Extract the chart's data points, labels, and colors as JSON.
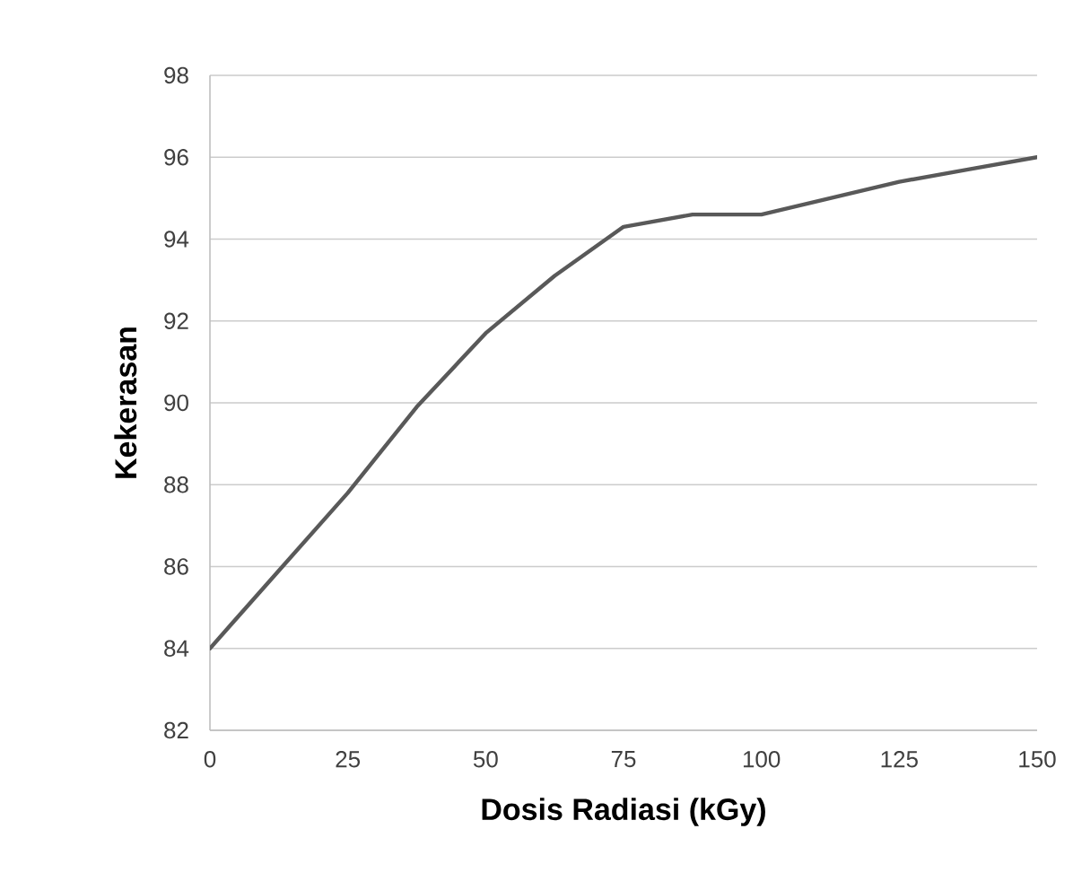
{
  "chart_data": {
    "type": "line",
    "xlabel": "Dosis Radiasi (kGy)",
    "ylabel": "Kekerasan",
    "x": [
      0,
      12.5,
      25,
      37.5,
      50,
      62.5,
      75,
      87.5,
      100,
      112.5,
      125,
      137.5,
      150
    ],
    "series": [
      {
        "color": "#595959",
        "values": [
          84.0,
          85.9,
          87.8,
          89.9,
          91.7,
          93.1,
          94.3,
          94.6,
          94.6,
          95.0,
          95.4,
          95.7,
          96.0
        ]
      }
    ],
    "xlim": [
      0,
      150
    ],
    "xticks": [
      0,
      25,
      50,
      75,
      100,
      125,
      150
    ],
    "ylim": [
      82,
      98
    ],
    "yticks": [
      82,
      84,
      86,
      88,
      90,
      92,
      94,
      96,
      98
    ],
    "grid": "y",
    "marker": "none",
    "line_style": "solid"
  }
}
